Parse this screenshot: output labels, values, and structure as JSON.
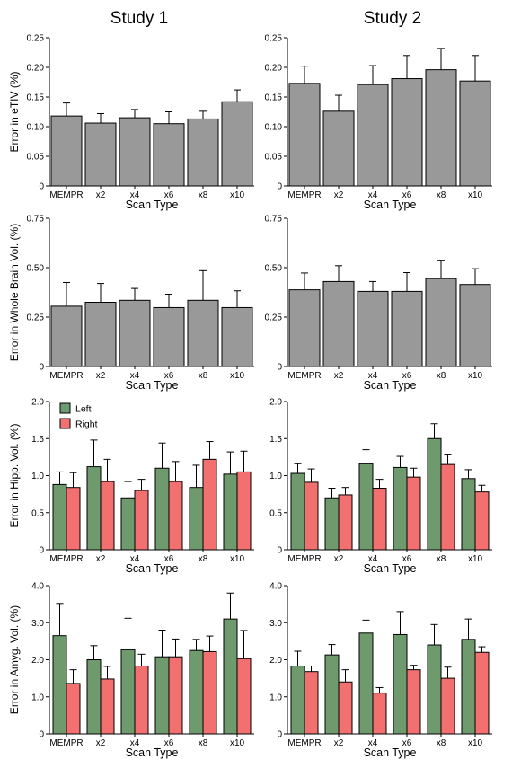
{
  "columns": [
    "Study 1",
    "Study 2"
  ],
  "colors": {
    "single": "#999999",
    "left": "#6e9a6e",
    "right": "#f27070",
    "axis": "#000000"
  },
  "legend": {
    "left": "Left",
    "right": "Right"
  },
  "chart_data": [
    {
      "type": "bar",
      "column": "Study 1",
      "categories": [
        "MEMPR",
        "x2",
        "x4",
        "x6",
        "x8",
        "x10"
      ],
      "xlabel": "Scan Type",
      "ylabel": "Error in eTIV (%)",
      "ylim": [
        0,
        0.25
      ],
      "yticks": [
        "0",
        "0.05",
        "0.10",
        "0.15",
        "0.20",
        "0.25"
      ],
      "series": [
        {
          "values": [
            0.118,
            0.106,
            0.115,
            0.105,
            0.113,
            0.142
          ],
          "errors": [
            0.022,
            0.016,
            0.014,
            0.02,
            0.013,
            0.02
          ]
        }
      ]
    },
    {
      "type": "bar",
      "column": "Study 2",
      "categories": [
        "MEMPR",
        "x2",
        "x4",
        "x6",
        "x8",
        "x10"
      ],
      "xlabel": "Scan Type",
      "ylabel": "",
      "ylim": [
        0,
        0.25
      ],
      "yticks": [
        "0",
        "0.05",
        "0.10",
        "0.15",
        "0.20",
        "0.25"
      ],
      "series": [
        {
          "values": [
            0.173,
            0.126,
            0.171,
            0.181,
            0.196,
            0.177
          ],
          "errors": [
            0.029,
            0.027,
            0.032,
            0.039,
            0.036,
            0.043
          ]
        }
      ]
    },
    {
      "type": "bar",
      "column": "Study 1",
      "categories": [
        "MEMPR",
        "x2",
        "x4",
        "x6",
        "x8",
        "x10"
      ],
      "xlabel": "Scan Type",
      "ylabel": "Error in Whole Brain Vol. (%)",
      "ylim": [
        0,
        0.75
      ],
      "yticks": [
        "0",
        "0.25",
        "0.50",
        "0.75"
      ],
      "series": [
        {
          "values": [
            0.305,
            0.325,
            0.335,
            0.298,
            0.335,
            0.298
          ],
          "errors": [
            0.12,
            0.095,
            0.06,
            0.068,
            0.15,
            0.085
          ]
        }
      ]
    },
    {
      "type": "bar",
      "column": "Study 2",
      "categories": [
        "MEMPR",
        "x2",
        "x4",
        "x6",
        "x8",
        "x10"
      ],
      "xlabel": "Scan Type",
      "ylabel": "",
      "ylim": [
        0,
        0.75
      ],
      "yticks": [
        "0",
        "0.25",
        "0.50",
        "0.75"
      ],
      "series": [
        {
          "values": [
            0.388,
            0.43,
            0.38,
            0.38,
            0.445,
            0.415
          ],
          "errors": [
            0.085,
            0.08,
            0.05,
            0.095,
            0.09,
            0.08
          ]
        }
      ]
    },
    {
      "type": "bar",
      "column": "Study 1",
      "categories": [
        "MEMPR",
        "x2",
        "x4",
        "x6",
        "x8",
        "x10"
      ],
      "xlabel": "Scan Type",
      "ylabel": "Error in Hipp. Vol. (%)",
      "ylim": [
        0,
        2.0
      ],
      "yticks": [
        "0",
        "0.5",
        "1.0",
        "1.5",
        "2.0"
      ],
      "legend": true,
      "series": [
        {
          "name": "Left",
          "values": [
            0.88,
            1.12,
            0.7,
            1.1,
            0.84,
            1.02
          ],
          "errors": [
            0.17,
            0.36,
            0.22,
            0.34,
            0.3,
            0.3
          ]
        },
        {
          "name": "Right",
          "values": [
            0.84,
            0.92,
            0.8,
            0.92,
            1.22,
            1.05
          ],
          "errors": [
            0.2,
            0.3,
            0.15,
            0.27,
            0.24,
            0.28
          ]
        }
      ]
    },
    {
      "type": "bar",
      "column": "Study 2",
      "categories": [
        "MEMPR",
        "x2",
        "x4",
        "x6",
        "x8",
        "x10"
      ],
      "xlabel": "Scan Type",
      "ylabel": "",
      "ylim": [
        0,
        2.0
      ],
      "yticks": [
        "0",
        "0.5",
        "1.0",
        "1.5",
        "2.0"
      ],
      "series": [
        {
          "name": "Left",
          "values": [
            1.03,
            0.7,
            1.16,
            1.11,
            1.5,
            0.96
          ],
          "errors": [
            0.13,
            0.13,
            0.19,
            0.15,
            0.2,
            0.12
          ]
        },
        {
          "name": "Right",
          "values": [
            0.91,
            0.74,
            0.83,
            0.98,
            1.15,
            0.78
          ],
          "errors": [
            0.18,
            0.1,
            0.12,
            0.12,
            0.14,
            0.09
          ]
        }
      ]
    },
    {
      "type": "bar",
      "column": "Study 1",
      "categories": [
        "MEMPR",
        "x2",
        "x4",
        "x6",
        "x8",
        "x10"
      ],
      "xlabel": "Scan Type",
      "ylabel": "Error in Amyg. Vol. (%)",
      "ylim": [
        0,
        4.0
      ],
      "yticks": [
        "0",
        "1.0",
        "2.0",
        "3.0",
        "4.0"
      ],
      "series": [
        {
          "name": "Left",
          "values": [
            2.65,
            2.0,
            2.27,
            2.08,
            2.25,
            3.1
          ],
          "errors": [
            0.87,
            0.38,
            0.85,
            0.72,
            0.3,
            0.7
          ]
        },
        {
          "name": "Right",
          "values": [
            1.36,
            1.48,
            1.83,
            2.08,
            2.22,
            2.03
          ],
          "errors": [
            0.37,
            0.34,
            0.32,
            0.48,
            0.42,
            0.76
          ]
        }
      ]
    },
    {
      "type": "bar",
      "column": "Study 2",
      "categories": [
        "MEMPR",
        "x2",
        "x4",
        "x6",
        "x8",
        "x10"
      ],
      "xlabel": "Scan Type",
      "ylabel": "",
      "ylim": [
        0,
        4.0
      ],
      "yticks": [
        "0",
        "1.0",
        "2.0",
        "3.0",
        "4.0"
      ],
      "series": [
        {
          "name": "Left",
          "values": [
            1.83,
            2.13,
            2.72,
            2.68,
            2.4,
            2.55
          ],
          "errors": [
            0.4,
            0.28,
            0.35,
            0.62,
            0.55,
            0.55
          ]
        },
        {
          "name": "Right",
          "values": [
            1.68,
            1.4,
            1.1,
            1.73,
            1.5,
            2.2
          ],
          "errors": [
            0.15,
            0.33,
            0.15,
            0.12,
            0.3,
            0.15
          ]
        }
      ]
    }
  ]
}
